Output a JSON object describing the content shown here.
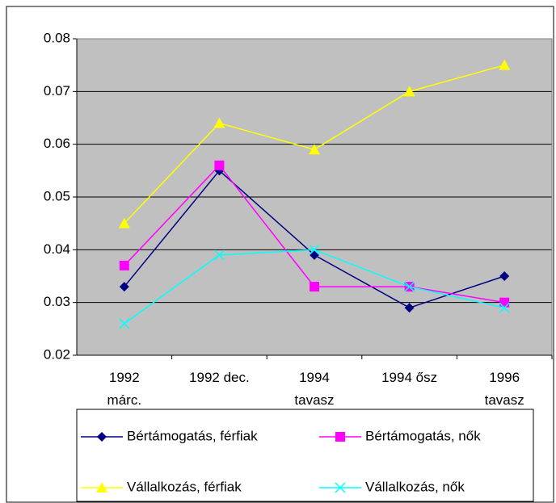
{
  "chart_data": {
    "type": "line",
    "categories": [
      "1992\nmárc.",
      "1992 dec.",
      "1994\ntavasz",
      "1994 ősz",
      "1996\ntavasz"
    ],
    "series": [
      {
        "name": "Bértámogatás, férfiak",
        "color": "#000080",
        "marker": "diamond",
        "values": [
          0.033,
          0.055,
          0.039,
          0.029,
          0.035
        ]
      },
      {
        "name": "Bértámogatás, nők",
        "color": "#ff00ff",
        "marker": "square",
        "values": [
          0.037,
          0.056,
          0.033,
          0.033,
          0.03
        ]
      },
      {
        "name": "Vállalkozás, férfiak",
        "color": "#ffff00",
        "marker": "triangle",
        "values": [
          0.045,
          0.064,
          0.059,
          0.07,
          0.075
        ]
      },
      {
        "name": "Vállalkozás, nők",
        "color": "#00ffff",
        "marker": "x",
        "values": [
          0.026,
          0.039,
          0.04,
          0.033,
          0.029
        ]
      }
    ],
    "ylim": [
      0.02,
      0.08
    ],
    "yticks": [
      0.02,
      0.03,
      0.04,
      0.05,
      0.06,
      0.07,
      0.08
    ],
    "grid": true,
    "legend": "bottom"
  }
}
